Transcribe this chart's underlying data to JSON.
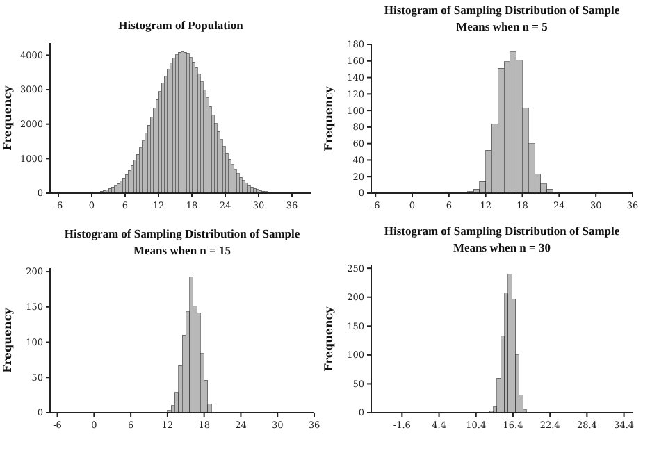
{
  "chart_data": [
    {
      "type": "histogram",
      "title": "Histogram of Population",
      "ylabel": "Frequency",
      "color": "#b8b8b8",
      "bins": [
        1.5,
        2,
        2.5,
        3,
        3.5,
        4,
        4.5,
        5,
        5.5,
        6,
        6.5,
        7,
        7.5,
        8,
        8.5,
        9,
        9.5,
        10,
        10.5,
        11,
        11.5,
        12,
        12.5,
        13,
        13.5,
        14,
        14.5,
        15,
        15.5,
        16,
        16.5,
        17,
        17.5,
        18,
        18.5,
        19,
        19.5,
        20,
        20.5,
        21,
        21.5,
        22,
        22.5,
        23,
        23.5,
        24,
        24.5,
        25,
        25.5,
        26,
        26.5,
        27,
        27.5,
        28,
        28.5,
        29,
        29.5,
        30,
        30.5,
        31,
        31.5
      ],
      "values": [
        60,
        80,
        100,
        140,
        180,
        230,
        280,
        360,
        440,
        540,
        660,
        800,
        950,
        1120,
        1310,
        1520,
        1740,
        1970,
        2210,
        2460,
        2710,
        2950,
        3190,
        3400,
        3600,
        3770,
        3910,
        4010,
        4080,
        4100,
        4080,
        4030,
        3930,
        3800,
        3640,
        3450,
        3230,
        3000,
        2760,
        2510,
        2270,
        2020,
        1790,
        1560,
        1350,
        1160,
        980,
        830,
        690,
        570,
        460,
        370,
        300,
        240,
        180,
        140,
        110,
        80,
        60,
        50
      ],
      "xlim": [
        -7.5,
        39.5
      ],
      "xticks": [
        -6,
        0,
        6,
        12,
        18,
        24,
        30,
        36
      ],
      "ylim": [
        0,
        4350
      ],
      "yticks": [
        0,
        1000,
        2000,
        3000,
        4000
      ]
    },
    {
      "type": "histogram",
      "title": "Histogram of Sampling Distribution of Sample Means when n = 5",
      "ylabel": "Frequency",
      "color": "#b8b8b8",
      "bins": [
        9,
        10,
        11,
        12,
        13,
        14,
        15,
        16,
        17,
        18,
        19,
        20,
        21,
        22,
        23
      ],
      "values": [
        2,
        5,
        14,
        52,
        84,
        151,
        159,
        171,
        161,
        103,
        60,
        23,
        11,
        5
      ],
      "xlim": [
        -6.7,
        36
      ],
      "xticks": [
        -6,
        0,
        6,
        12,
        18,
        24,
        30,
        36
      ],
      "ylim": [
        0,
        180
      ],
      "yticks": [
        0,
        20,
        40,
        60,
        80,
        100,
        120,
        140,
        160,
        180
      ]
    },
    {
      "type": "histogram",
      "title": "Histogram of Sampling Distribution of Sample Means when n = 15",
      "ylabel": "Frequency",
      "color": "#b8b8b8",
      "bins": [
        12,
        12.6,
        13.2,
        13.8,
        14.4,
        15,
        15.6,
        16.2,
        16.8,
        17.4,
        18,
        18.6,
        19.2
      ],
      "values": [
        3,
        10,
        29,
        67,
        110,
        143,
        193,
        151,
        141,
        84,
        46,
        12
      ],
      "xlim": [
        -7.2,
        36
      ],
      "xticks": [
        -6,
        0,
        6,
        12,
        18,
        24,
        30,
        36
      ],
      "ylim": [
        0,
        205
      ],
      "yticks": [
        0,
        50,
        100,
        150,
        200
      ]
    },
    {
      "type": "histogram",
      "title": "Histogram of Sampling Distribution of Sample Means when n = 30",
      "ylabel": "Frequency",
      "color": "#b8b8b8",
      "bins": [
        11.4,
        12,
        12.6,
        13.2,
        13.8,
        14.4,
        15,
        15.6,
        16.2,
        16.8,
        17.4,
        18,
        18.6
      ],
      "values": [
        1,
        1,
        3,
        10,
        60,
        133,
        208,
        240,
        197,
        100,
        31,
        5
      ],
      "xlim": [
        -6.6,
        35.8
      ],
      "xticks": [
        -1.6,
        4.4,
        10.4,
        16.4,
        22.4,
        28.4,
        34.4
      ],
      "ylim": [
        0,
        255
      ],
      "yticks": [
        0,
        50,
        100,
        150,
        200,
        250
      ]
    }
  ]
}
